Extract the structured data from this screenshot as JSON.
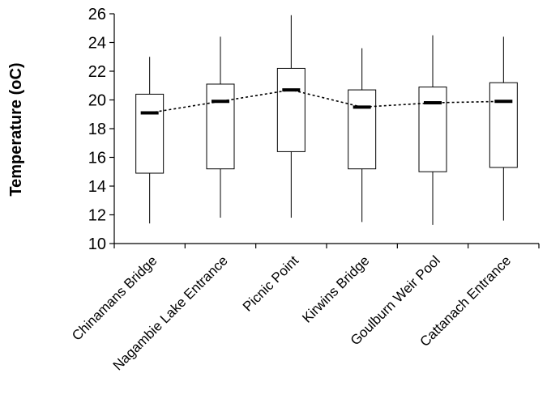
{
  "chart_data": {
    "type": "box",
    "ylabel": "Temperature (oC)",
    "xlabel": "",
    "ylim": [
      10,
      26
    ],
    "y_ticks": [
      10,
      12,
      14,
      16,
      18,
      20,
      22,
      24,
      26
    ],
    "categories": [
      "Chinamans Bridge",
      "Nagambie Lake Entrance",
      "Picnic Point",
      "Kirwins Bridge",
      "Goulburn Weir Pool",
      "Cattanach Entrance"
    ],
    "boxes": [
      {
        "min": 11.4,
        "q1": 14.9,
        "median": 19.1,
        "q3": 20.4,
        "max": 23.0
      },
      {
        "min": 11.8,
        "q1": 15.2,
        "median": 19.9,
        "q3": 21.1,
        "max": 24.4
      },
      {
        "min": 11.8,
        "q1": 16.4,
        "median": 20.7,
        "q3": 22.2,
        "max": 25.9
      },
      {
        "min": 11.5,
        "q1": 15.2,
        "median": 19.5,
        "q3": 20.7,
        "max": 23.6
      },
      {
        "min": 11.3,
        "q1": 15.0,
        "median": 19.8,
        "q3": 20.9,
        "max": 24.5
      },
      {
        "min": 11.6,
        "q1": 15.3,
        "median": 19.9,
        "q3": 21.2,
        "max": 24.4
      }
    ],
    "median_line": {
      "style": "dotted",
      "connects": "medians"
    },
    "grid": false,
    "legend": "none"
  }
}
